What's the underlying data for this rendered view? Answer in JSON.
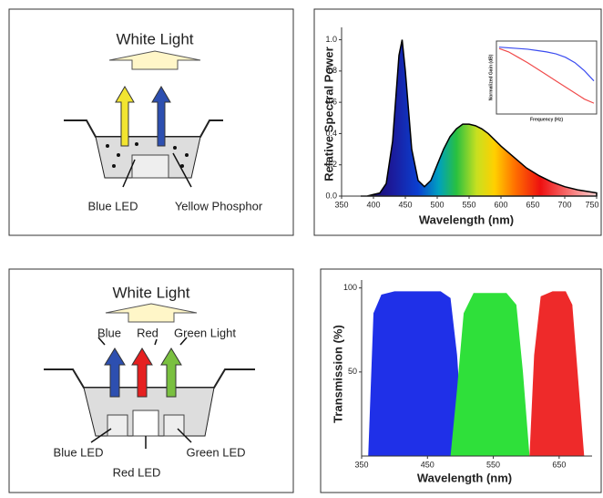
{
  "panels": [
    {
      "title": "White Light",
      "labels": [
        "Blue LED",
        "Yellow Phosphor"
      ]
    },
    {
      "title": "White Light",
      "arrow_labels": [
        "Blue",
        "Red",
        "Green Light"
      ],
      "labels": [
        "Blue LED",
        "Red LED",
        "Green LED"
      ]
    }
  ],
  "chart_data": [
    {
      "type": "area",
      "x_label": "Wavelength (nm)",
      "y_label": "Relative Spectral Power",
      "color": "#000000",
      "x": [
        380,
        390,
        400,
        410,
        420,
        430,
        440,
        445,
        450,
        460,
        470,
        480,
        490,
        500,
        510,
        520,
        530,
        540,
        550,
        560,
        570,
        580,
        590,
        600,
        620,
        640,
        660,
        680,
        700,
        720,
        750
      ],
      "values": [
        0.0,
        0.0,
        0.01,
        0.02,
        0.08,
        0.35,
        0.9,
        1.0,
        0.8,
        0.3,
        0.1,
        0.06,
        0.1,
        0.2,
        0.3,
        0.38,
        0.43,
        0.46,
        0.46,
        0.45,
        0.43,
        0.4,
        0.36,
        0.32,
        0.25,
        0.18,
        0.13,
        0.09,
        0.06,
        0.04,
        0.02
      ],
      "xlim": [
        350,
        750
      ],
      "ylim": [
        0,
        1.05
      ],
      "xticks": [
        350,
        400,
        450,
        500,
        550,
        600,
        650,
        700,
        750
      ],
      "yticks": [
        {
          "value": 0,
          "label": "0.0"
        },
        0.2,
        0.4,
        0.6,
        0.8,
        {
          "value": 1,
          "label": "1.0"
        }
      ]
    },
    {
      "type": "line",
      "x_label": "Frequency (Hz)",
      "y_label": "Normalized Gain (dB)",
      "x": [
        0,
        1,
        2,
        3,
        4,
        5,
        6,
        7,
        8,
        9,
        10
      ],
      "xlim": [
        0,
        10
      ],
      "ylim": [
        0,
        1
      ],
      "series": [
        {
          "color": "#3b4cf0",
          "values": [
            0.95,
            0.94,
            0.93,
            0.92,
            0.9,
            0.88,
            0.85,
            0.8,
            0.72,
            0.6,
            0.45
          ]
        },
        {
          "color": "#f04b4b",
          "values": [
            0.93,
            0.88,
            0.8,
            0.72,
            0.63,
            0.54,
            0.45,
            0.36,
            0.27,
            0.18,
            0.12
          ]
        }
      ]
    },
    {
      "type": "area",
      "x_label": "Wavelength (nm)",
      "y_label": "Transmission (%)",
      "xlim": [
        350,
        700
      ],
      "ylim": [
        0,
        102
      ],
      "xticks": [
        350,
        450,
        550,
        650
      ],
      "yticks": [
        50,
        100
      ],
      "series": [
        {
          "color": "#1f30e8",
          "x": [
            360,
            368,
            380,
            400,
            470,
            485,
            495,
            505
          ],
          "values": [
            0,
            85,
            96,
            98,
            98,
            94,
            60,
            0
          ]
        },
        {
          "color": "#2fe03a",
          "x": [
            485,
            495,
            505,
            520,
            570,
            585,
            595,
            605
          ],
          "values": [
            0,
            40,
            85,
            97,
            97,
            90,
            50,
            0
          ]
        },
        {
          "color": "#ee2a2a",
          "x": [
            605,
            612,
            622,
            640,
            660,
            670,
            678,
            688
          ],
          "values": [
            0,
            60,
            95,
            98,
            98,
            90,
            50,
            0
          ]
        }
      ]
    }
  ]
}
